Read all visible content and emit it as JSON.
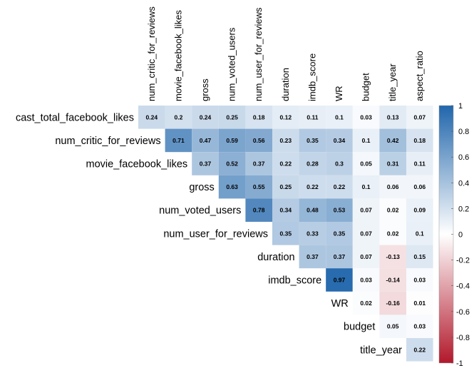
{
  "chart_data": {
    "type": "heatmap",
    "variables": [
      "cast_total_facebook_likes",
      "num_critic_for_reviews",
      "movie_facebook_likes",
      "gross",
      "num_voted_users",
      "num_user_for_reviews",
      "duration",
      "imdb_score",
      "WR",
      "budget",
      "title_year",
      "aspect_ratio"
    ],
    "matrix_upper": [
      [
        0.24,
        0.2,
        0.24,
        0.25,
        0.18,
        0.12,
        0.11,
        0.1,
        0.03,
        0.13,
        0.07
      ],
      [
        0.71,
        0.47,
        0.59,
        0.56,
        0.23,
        0.35,
        0.34,
        0.1,
        0.42,
        0.18
      ],
      [
        0.37,
        0.52,
        0.37,
        0.22,
        0.28,
        0.3,
        0.05,
        0.31,
        0.11
      ],
      [
        0.63,
        0.55,
        0.25,
        0.22,
        0.22,
        0.1,
        0.06,
        0.06
      ],
      [
        0.78,
        0.34,
        0.48,
        0.53,
        0.07,
        0.02,
        0.09
      ],
      [
        0.35,
        0.33,
        0.35,
        0.07,
        0.02,
        0.1
      ],
      [
        0.37,
        0.37,
        0.07,
        -0.13,
        0.15
      ],
      [
        0.97,
        0.03,
        -0.14,
        0.03
      ],
      [
        0.02,
        -0.16,
        0.01
      ],
      [
        0.05,
        0.03
      ],
      [
        0.22
      ]
    ],
    "colorbar_ticks": [
      "1",
      "0.8",
      "0.6",
      "0.4",
      "0.2",
      "0",
      "-0.2",
      "-0.4",
      "-0.6",
      "-0.8",
      "-1"
    ],
    "value_range": [
      -1,
      1
    ],
    "colors": {
      "positive": "#2166AC",
      "zero": "#FFFFFF",
      "negative": "#B2182B"
    },
    "grid": false,
    "legend": "colorbar-right"
  }
}
